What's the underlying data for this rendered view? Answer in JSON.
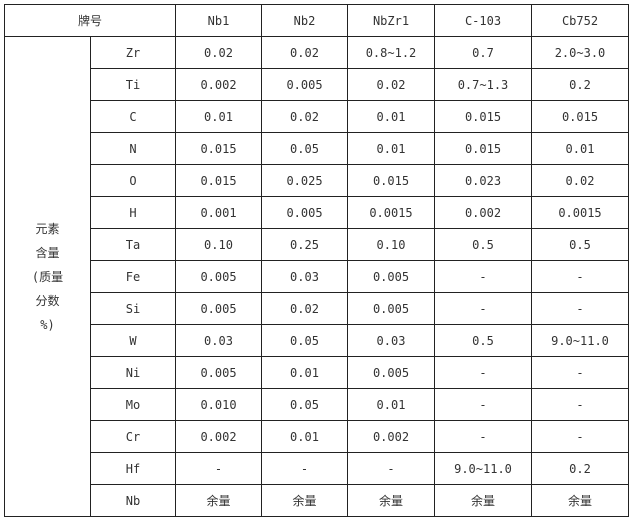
{
  "header": {
    "grade_label": "牌号",
    "grades": [
      "Nb1",
      "Nb2",
      "NbZr1",
      "C-103",
      "Cb752"
    ]
  },
  "group_label": [
    "元素",
    "含量",
    "(质量",
    "分数",
    "%)"
  ],
  "rows": [
    {
      "element": "Zr",
      "values": [
        "0.02",
        "0.02",
        "0.8~1.2",
        "0.7",
        "2.0~3.0"
      ]
    },
    {
      "element": "Ti",
      "values": [
        "0.002",
        "0.005",
        "0.02",
        "0.7~1.3",
        "0.2"
      ]
    },
    {
      "element": "C",
      "values": [
        "0.01",
        "0.02",
        "0.01",
        "0.015",
        "0.015"
      ]
    },
    {
      "element": "N",
      "values": [
        "0.015",
        "0.05",
        "0.01",
        "0.015",
        "0.01"
      ]
    },
    {
      "element": "O",
      "values": [
        "0.015",
        "0.025",
        "0.015",
        "0.023",
        "0.02"
      ]
    },
    {
      "element": "H",
      "values": [
        "0.001",
        "0.005",
        "0.0015",
        "0.002",
        "0.0015"
      ]
    },
    {
      "element": "Ta",
      "values": [
        "0.10",
        "0.25",
        "0.10",
        "0.5",
        "0.5"
      ]
    },
    {
      "element": "Fe",
      "values": [
        "0.005",
        "0.03",
        "0.005",
        "-",
        "-"
      ]
    },
    {
      "element": "Si",
      "values": [
        "0.005",
        "0.02",
        "0.005",
        "-",
        "-"
      ]
    },
    {
      "element": "W",
      "values": [
        "0.03",
        "0.05",
        "0.03",
        "0.5",
        "9.0~11.0"
      ]
    },
    {
      "element": "Ni",
      "values": [
        "0.005",
        "0.01",
        "0.005",
        "-",
        "-"
      ]
    },
    {
      "element": "Mo",
      "values": [
        "0.010",
        "0.05",
        "0.01",
        "-",
        "-"
      ]
    },
    {
      "element": "Cr",
      "values": [
        "0.002",
        "0.01",
        "0.002",
        "-",
        "-"
      ]
    },
    {
      "element": "Hf",
      "values": [
        "-",
        "-",
        "-",
        "9.0~11.0",
        "0.2"
      ]
    },
    {
      "element": "Nb",
      "values": [
        "余量",
        "余量",
        "余量",
        "余量",
        "余量"
      ]
    }
  ]
}
